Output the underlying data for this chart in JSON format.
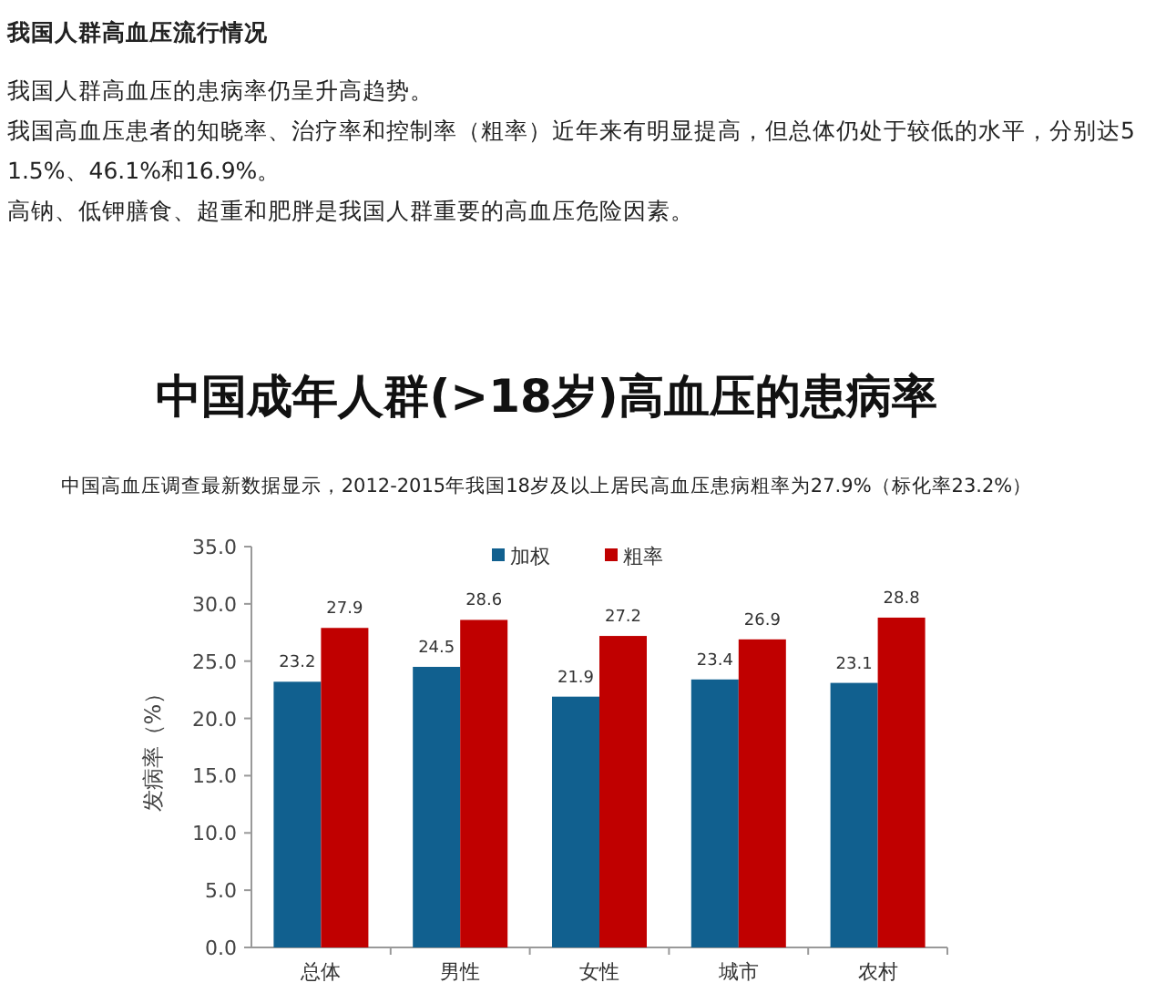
{
  "chart_data": {
    "type": "bar",
    "title": "中国成年人群(>18岁)高血压的患病率",
    "subtitle": "中国高血压调查最新数据显示，2012-2015年我国18岁及以上居民高血压患病粗率为27.9%（标化率23.2%）",
    "ylabel": "发病率（%）",
    "annotations": [
      "我国人群高血压流行情况",
      "我国人群高血压的患病率仍呈升高趋势。",
      "我国高血压患者的知晓率、治疗率和控制率（粗率）近年来有明显提高，但总体仍处于较低的水平，分别达51.5%、46.1%和16.9%。",
      "高钠、低钾膳食、超重和肥胖是我国人群重要的高血压危险因素。"
    ],
    "categories": [
      "总体",
      "男性",
      "女性",
      "城市",
      "农村"
    ],
    "series": [
      {
        "name": "加权",
        "color": "#11608f",
        "values": [
          23.2,
          24.5,
          21.9,
          23.4,
          23.1
        ]
      },
      {
        "name": "粗率",
        "color": "#c00000",
        "values": [
          27.9,
          28.6,
          27.2,
          26.9,
          28.8
        ]
      }
    ],
    "ylim": [
      0,
      35
    ],
    "yticks": [
      {
        "value": 0,
        "label": "0.0"
      },
      {
        "value": 5,
        "label": "5.0"
      },
      {
        "value": 10,
        "label": "10.0"
      },
      {
        "value": 15,
        "label": "15.0"
      },
      {
        "value": 20,
        "label": "20.0"
      },
      {
        "value": 25,
        "label": "25.0"
      },
      {
        "value": 30,
        "label": "30.0"
      },
      {
        "value": 35,
        "label": "35.0"
      }
    ],
    "data_labels": true,
    "legend": "top",
    "grid": false
  }
}
